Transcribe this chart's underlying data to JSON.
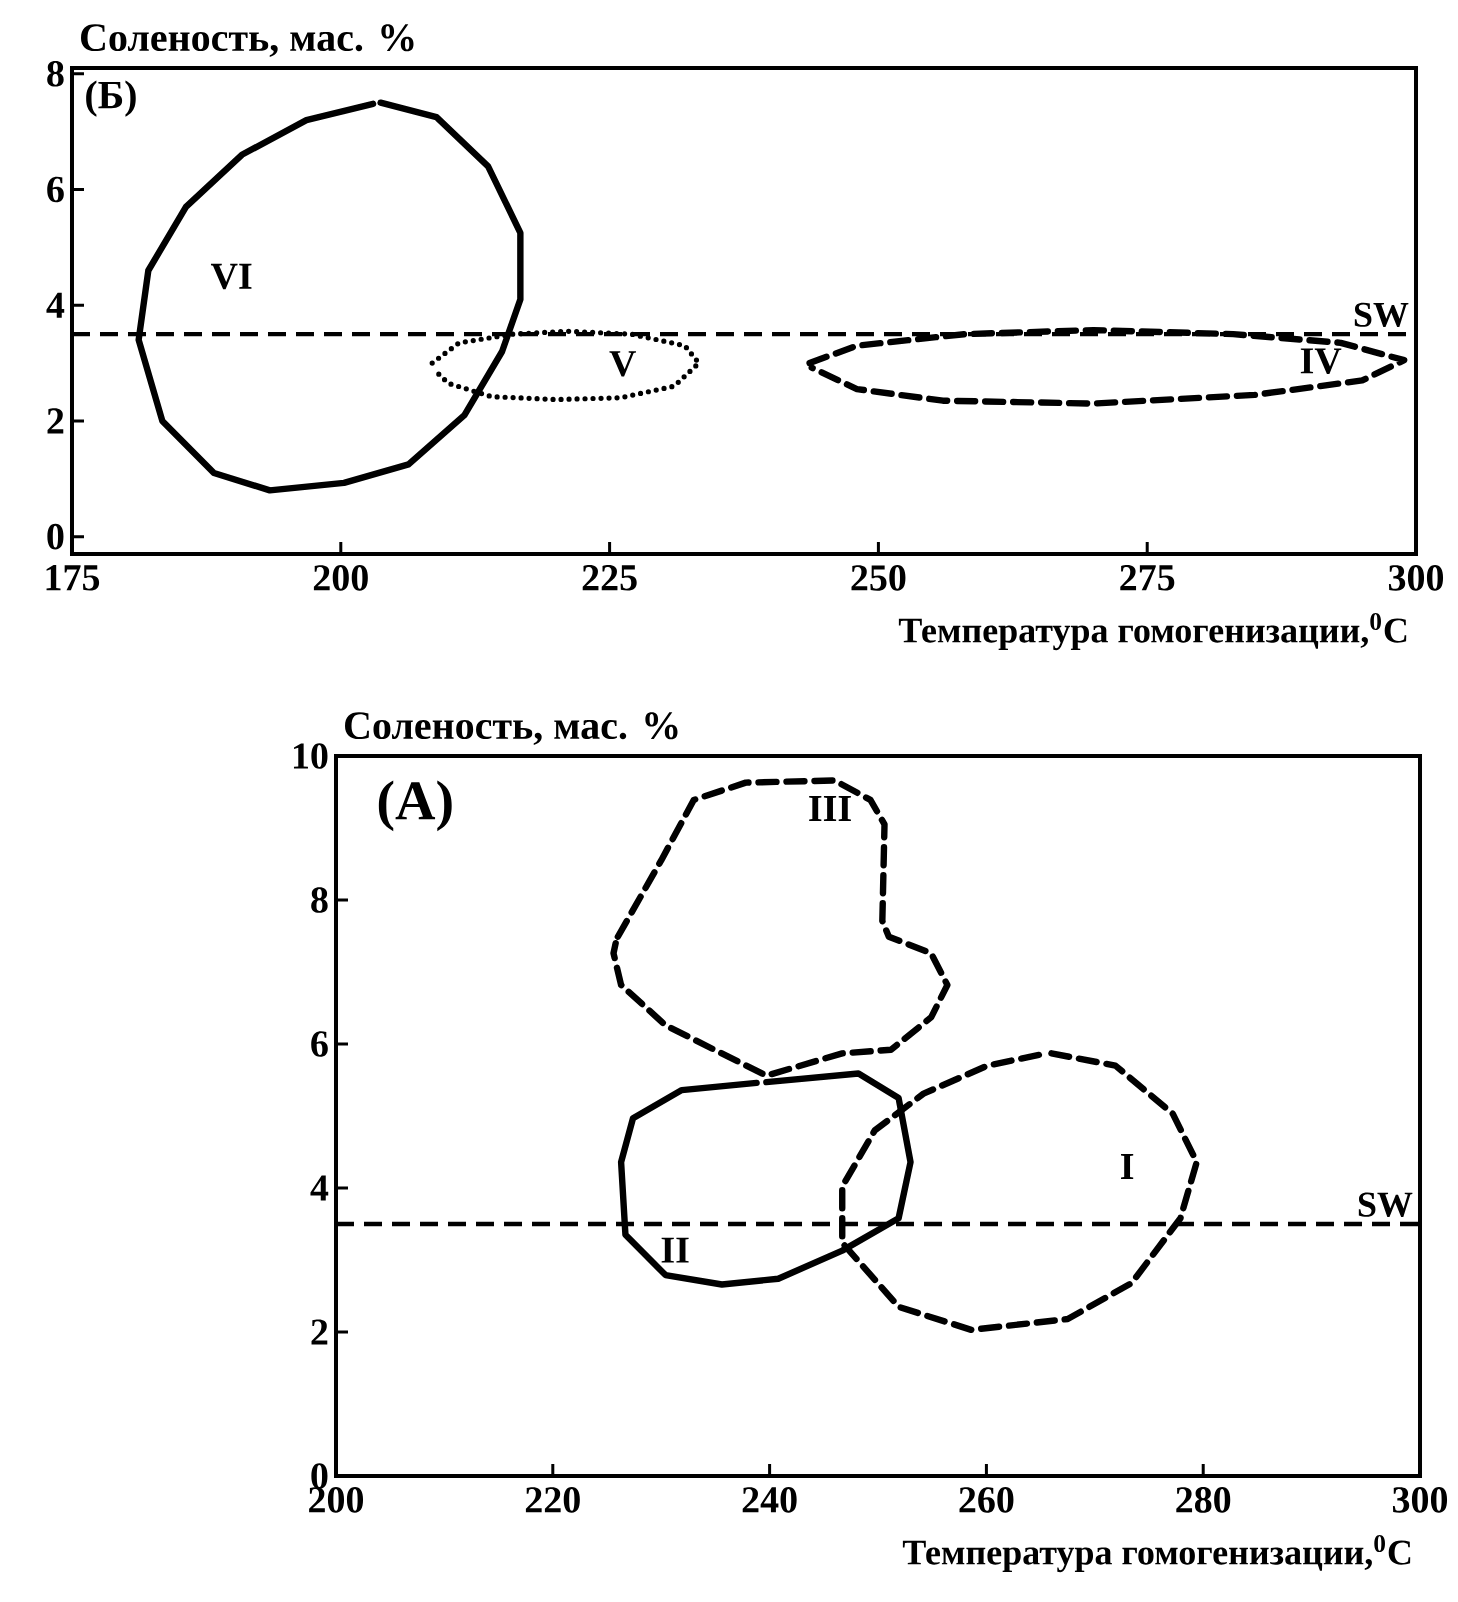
{
  "chart_data": [
    {
      "type": "line",
      "title": "(Б)",
      "xlabel": "Температура гомогенизации,$^{0}$C",
      "ylabel": "Соленость, мас. %",
      "xlim": [
        175,
        300
      ],
      "ylim": [
        -0.3,
        8.1
      ],
      "xticks": [
        175,
        200,
        225,
        250,
        275,
        300
      ],
      "yticks": [
        0,
        2,
        4,
        6,
        8
      ],
      "marker": "none",
      "grid": false,
      "legend": false,
      "series": [
        {
          "name": "VI",
          "color": "#000000",
          "line_style": "solid",
          "x": [
            203.7,
            208.9,
            213.7,
            216.7,
            216.7,
            215,
            211.5,
            206.3,
            200.3,
            193.4,
            188.2,
            183.4,
            181.2,
            182.1,
            185.6,
            190.8,
            196.8,
            203.0
          ],
          "values": [
            7.5,
            7.25,
            6.4,
            5.25,
            4.1,
            3.2,
            2.1,
            1.25,
            0.93,
            0.8,
            1.1,
            2.0,
            3.4,
            4.6,
            5.7,
            6.6,
            7.2,
            7.48
          ]
        },
        {
          "name": "V",
          "color": "#000000",
          "line_style": "dotted",
          "x": [
            208.5,
            211,
            216,
            221,
            227,
            232,
            233.3,
            231,
            226,
            220,
            214,
            210,
            208.6
          ],
          "values": [
            3.0,
            3.35,
            3.5,
            3.55,
            3.5,
            3.3,
            3.0,
            2.6,
            2.4,
            2.37,
            2.42,
            2.65,
            2.9
          ]
        },
        {
          "name": "IV",
          "color": "#000000",
          "line_style": "dashdotted",
          "x": [
            243.6,
            248,
            258,
            270,
            283,
            293,
            298.9,
            295,
            285,
            270,
            256,
            248,
            243.8
          ],
          "values": [
            3.0,
            3.3,
            3.5,
            3.57,
            3.5,
            3.35,
            3.05,
            2.7,
            2.45,
            2.3,
            2.35,
            2.55,
            2.92
          ]
        }
      ],
      "ref_lines": [
        {
          "axis": "y",
          "value": 3.5,
          "label": "SW",
          "line_style": "dashed",
          "color": "#000000"
        }
      ]
    },
    {
      "type": "line",
      "title": "(А)",
      "xlabel": "Температура гомогенизации,$^{0}$C",
      "ylabel": "Соленость, мас. %",
      "xlim": [
        200,
        300
      ],
      "ylim": [
        0,
        10
      ],
      "xticks": [
        200,
        220,
        240,
        260,
        280,
        300
      ],
      "yticks": [
        0,
        2,
        4,
        6,
        8,
        10
      ],
      "marker": "none",
      "grid": false,
      "legend": false,
      "series": [
        {
          "name": "III",
          "color": "#000000",
          "line_style": "dashed",
          "x": [
            226.0,
            230.0,
            233.0,
            237.8,
            246.0,
            249.3,
            250.6,
            250.4,
            251.0,
            254.9,
            256.4,
            254.9,
            251.2,
            246.7,
            239.7,
            234.9,
            230.4,
            226.3,
            225.6,
            225.8
          ],
          "values": [
            7.49,
            8.55,
            9.39,
            9.63,
            9.66,
            9.39,
            9.05,
            7.71,
            7.49,
            7.26,
            6.82,
            6.37,
            5.92,
            5.87,
            5.56,
            5.92,
            6.26,
            6.82,
            7.26,
            7.4
          ]
        },
        {
          "name": "II",
          "color": "#000000",
          "line_style": "solid",
          "x": [
            239.7,
            248.2,
            251.9,
            253.0,
            251.9,
            246.7,
            240.8,
            235.6,
            230.4,
            226.7,
            226.3,
            227.4,
            231.9,
            238.8
          ],
          "values": [
            5.47,
            5.59,
            5.25,
            4.36,
            3.58,
            3.13,
            2.74,
            2.66,
            2.79,
            3.35,
            4.36,
            4.97,
            5.36,
            5.46
          ]
        },
        {
          "name": "I",
          "color": "#000000",
          "line_style": "dashdotted",
          "x": [
            266.0,
            271.9,
            277.2,
            279.4,
            277.9,
            273.4,
            267.5,
            258.6,
            251.9,
            246.7,
            246.7,
            249.7,
            254.2,
            260.1,
            265.2
          ],
          "values": [
            5.87,
            5.7,
            5.03,
            4.36,
            3.58,
            2.68,
            2.18,
            2.03,
            2.35,
            3.24,
            4.02,
            4.8,
            5.31,
            5.7,
            5.86
          ]
        }
      ],
      "ref_lines": [
        {
          "axis": "y",
          "value": 3.5,
          "label": "SW",
          "line_style": "dashed",
          "color": "#000000"
        }
      ]
    }
  ]
}
